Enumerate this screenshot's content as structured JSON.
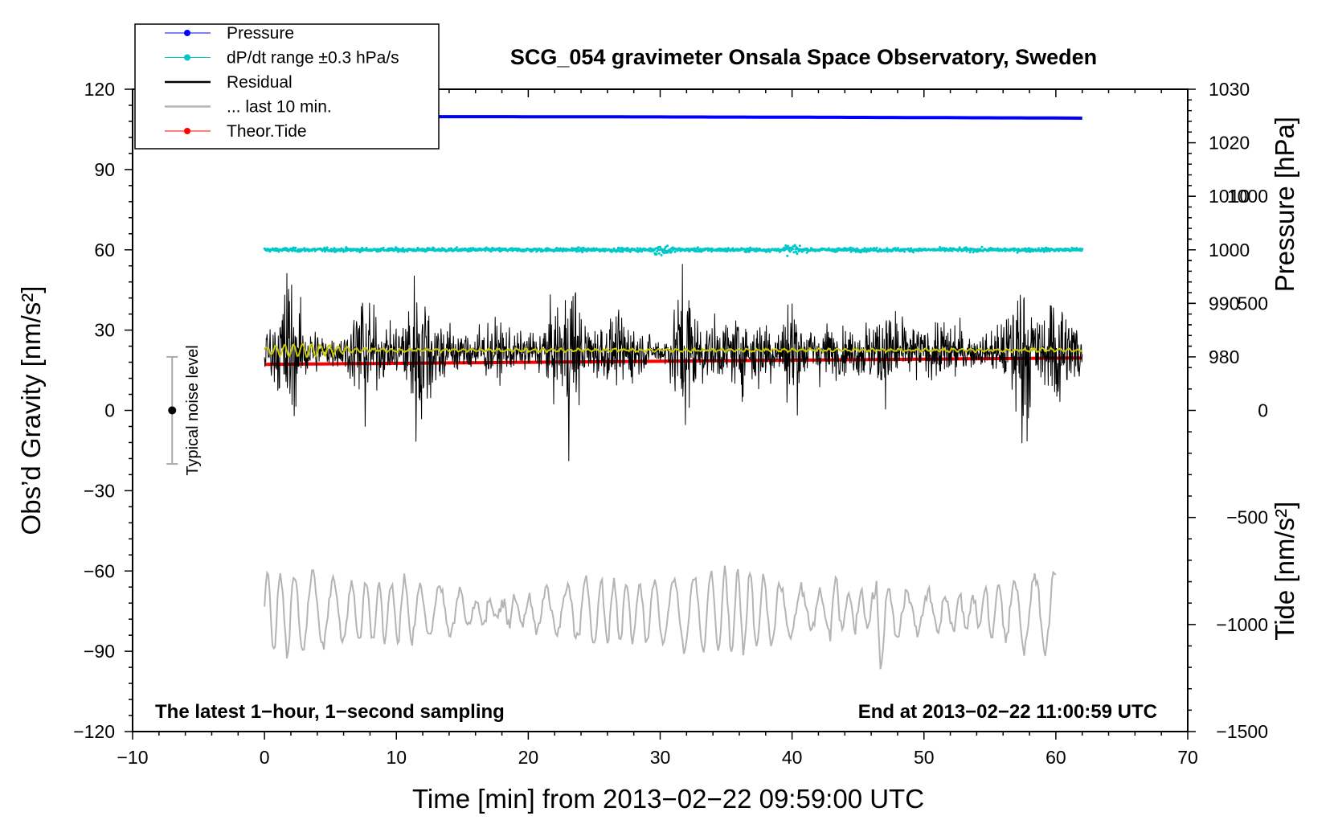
{
  "chart_data": {
    "type": "line",
    "title": "SCG_054 gravimeter Onsala Space Observatory, Sweden",
    "xlabel": "Time [min] from 2013−02−22 09:59:00 UTC",
    "ylabel_left": "Obs’d Gravity [nm/s²]",
    "ylabel_right_top": "Pressure [hPa]",
    "ylabel_right_bottom": "Tide [nm/s²]",
    "xlim": [
      -10,
      70
    ],
    "ylim": [
      -120,
      120
    ],
    "x_ticks": [
      {
        "value": -10,
        "label": "−10"
      },
      {
        "value": 0,
        "label": "0"
      },
      {
        "value": 10,
        "label": "10"
      },
      {
        "value": 20,
        "label": "20"
      },
      {
        "value": 30,
        "label": "30"
      },
      {
        "value": 40,
        "label": "40"
      },
      {
        "value": 50,
        "label": "50"
      },
      {
        "value": 60,
        "label": "60"
      },
      {
        "value": 70,
        "label": "70"
      }
    ],
    "y_ticks": [
      {
        "value": 120,
        "label": "120"
      },
      {
        "value": 90,
        "label": "90"
      },
      {
        "value": 60,
        "label": "60"
      },
      {
        "value": 30,
        "label": "30"
      },
      {
        "value": 0,
        "label": "0"
      },
      {
        "value": -30,
        "label": "−30"
      },
      {
        "value": -60,
        "label": "−60"
      },
      {
        "value": -90,
        "label": "−90"
      },
      {
        "value": -120,
        "label": "−120"
      }
    ],
    "pressure_axis": {
      "range": [
        980,
        1030
      ],
      "ticks": [
        {
          "value": 1030,
          "label": "1030"
        },
        {
          "value": 1020,
          "label": "1020"
        },
        {
          "value": 1010,
          "label": "1010"
        },
        {
          "value": 1000,
          "label": "1000"
        },
        {
          "value": 990,
          "label": "990"
        },
        {
          "value": 980,
          "label": "980"
        }
      ]
    },
    "tide_axis": {
      "range": [
        -1500,
        1000
      ],
      "ticks": [
        {
          "value": 1000,
          "label": "1000"
        },
        {
          "value": 500,
          "label": "500"
        },
        {
          "value": 0,
          "label": "0"
        },
        {
          "value": -500,
          "label": "−500"
        },
        {
          "value": -1000,
          "label": "−1000"
        },
        {
          "value": -1500,
          "label": "−1500"
        }
      ]
    },
    "series": [
      {
        "name": "Pressure",
        "color": "#0000ff",
        "axis": "pressure",
        "x_range": [
          0,
          62
        ],
        "start": 1024.9,
        "end": 1024.6
      },
      {
        "name": "dP/dt range ±0.3 hPa/s",
        "color": "#00c8c8",
        "axis": "gravity",
        "x_range": [
          0,
          62
        ],
        "level": 60,
        "noise": 0.8
      },
      {
        "name": "Residual",
        "color": "#000000",
        "axis": "gravity",
        "x_range": [
          0,
          62
        ],
        "level": 22,
        "noise": 10
      },
      {
        "name": "... last 10 min.",
        "color": "#b4b4b4",
        "axis": "gravity",
        "x_range": [
          0,
          60
        ],
        "level": -75,
        "noise": 10
      },
      {
        "name": "Theor.Tide",
        "color": "#ff0000",
        "axis": "tide",
        "x_range": [
          0,
          62
        ],
        "start": 215,
        "end": 245
      }
    ],
    "smoothed_residual": {
      "color": "#c8c800",
      "level": 22.5,
      "x_range": [
        0,
        62
      ]
    },
    "noise_level": {
      "label": "Typical noise level",
      "x": -7,
      "center": 0,
      "half_range": 20
    },
    "footer_left": "The latest 1−hour, 1−second sampling",
    "footer_right": "End at 2013−02−22 11:00:59 UTC"
  }
}
